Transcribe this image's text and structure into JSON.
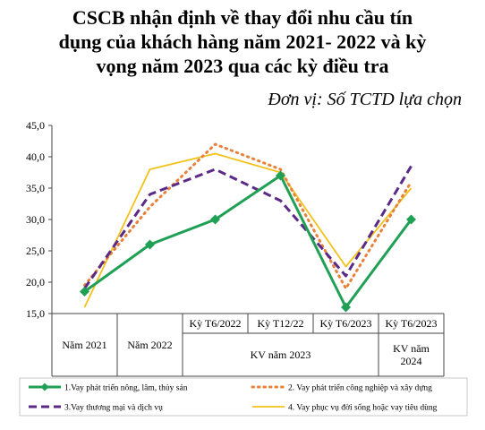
{
  "title_lines": [
    "CSCB nhận định về thay đổi nhu cầu tín",
    "dụng của khách hàng năm 2021- 2022 và kỳ",
    "vọng năm 2023 qua các kỳ điều tra"
  ],
  "unit": "Đơn vị: Số TCTD lựa chọn",
  "chart_data": {
    "type": "line",
    "ylim": [
      15,
      45
    ],
    "yticks": [
      "15,0",
      "20,0",
      "25,0",
      "30,0",
      "35,0",
      "40,0",
      "45,0"
    ],
    "ytick_values": [
      15,
      20,
      25,
      30,
      35,
      40,
      45
    ],
    "categories_level1": [
      "",
      "",
      "Kỳ T6/2022",
      "Kỳ T12/22",
      "Kỳ T6/2023",
      "Kỳ T6/2023"
    ],
    "groups": [
      {
        "label": "Năm 2021",
        "span": [
          0,
          1
        ]
      },
      {
        "label": "Năm 2022",
        "span": [
          1,
          2
        ]
      },
      {
        "label": "KV năm 2023",
        "span": [
          2,
          5
        ]
      },
      {
        "label": "KV năm\n2024",
        "span": [
          5,
          6
        ]
      }
    ],
    "series": [
      {
        "name": "1.Vay phát triển nông, lâm, thủy sản",
        "color": "#1fa055",
        "style": "solid",
        "values": [
          18.5,
          26,
          30,
          37,
          16,
          30
        ]
      },
      {
        "name": "2. Vay phát triển công nghiệp và xây dựng",
        "color": "#e8823a",
        "style": "dotted",
        "values": [
          19.5,
          32,
          42,
          38,
          19,
          36
        ]
      },
      {
        "name": "3.Vay thương mại và dịch vụ",
        "color": "#5b2a86",
        "style": "dashed",
        "values": [
          19,
          34,
          38,
          33,
          21,
          38.5
        ]
      },
      {
        "name": "4. Vay phục vụ đời sống hoặc vay tiêu dùng",
        "color": "#f3c21a",
        "style": "solid-thin",
        "values": [
          16,
          38,
          40.5,
          37.5,
          22.5,
          35
        ]
      }
    ]
  }
}
